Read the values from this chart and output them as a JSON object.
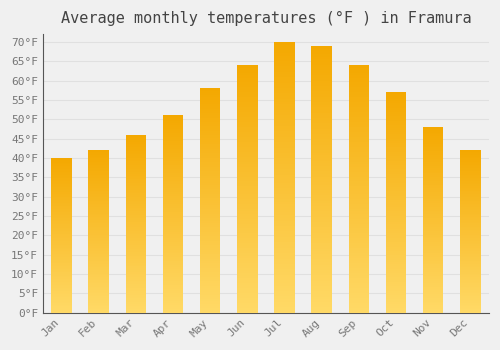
{
  "title": "Average monthly temperatures (°F ) in Framura",
  "months": [
    "Jan",
    "Feb",
    "Mar",
    "Apr",
    "May",
    "Jun",
    "Jul",
    "Aug",
    "Sep",
    "Oct",
    "Nov",
    "Dec"
  ],
  "values": [
    40,
    42,
    46,
    51,
    58,
    64,
    70,
    69,
    64,
    57,
    48,
    42
  ],
  "bar_color_bottom": "#FFD966",
  "bar_color_top": "#F4A800",
  "ylim": [
    0,
    72
  ],
  "ytick_step": 5,
  "background_color": "#f0f0f0",
  "plot_bg_color": "#f0f0f0",
  "grid_color": "#e0e0e0",
  "title_fontsize": 11,
  "tick_fontsize": 8,
  "font_family": "monospace",
  "bar_width": 0.55
}
